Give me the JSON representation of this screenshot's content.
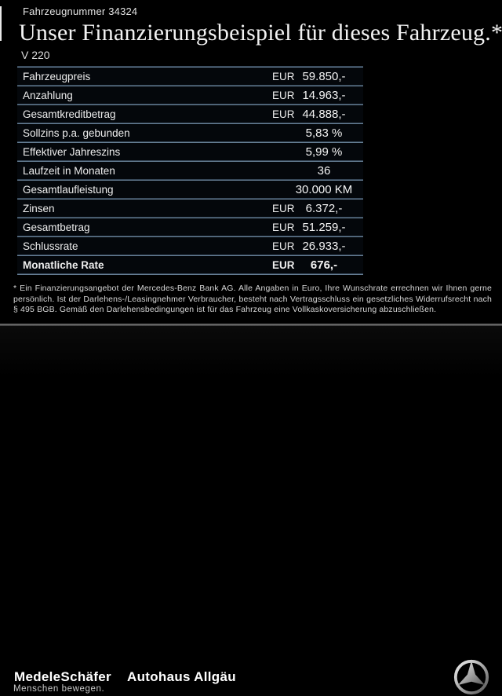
{
  "header": {
    "vehicle_number": "Fahrzeugnummer 34324",
    "title": "Unser Finanzierungsbeispiel für dieses Fahrzeug.*",
    "model": "V 220"
  },
  "table": {
    "rows": [
      {
        "label": "Fahrzeugpreis",
        "currency": "EUR",
        "value": "59.850,-",
        "bold": false
      },
      {
        "label": "Anzahlung",
        "currency": "EUR",
        "value": "14.963,-",
        "bold": false
      },
      {
        "label": "Gesamtkreditbetrag",
        "currency": "EUR",
        "value": "44.888,-",
        "bold": false
      },
      {
        "label": "Sollzins p.a. gebunden",
        "currency": "",
        "value": "5,83 %",
        "bold": false
      },
      {
        "label": "Effektiver Jahreszins",
        "currency": "",
        "value": "5,99 %",
        "bold": false
      },
      {
        "label": "Laufzeit in Monaten",
        "currency": "",
        "value": "36",
        "bold": false
      },
      {
        "label": "Gesamtlaufleistung",
        "currency": "",
        "value": "30.000 KM",
        "bold": false
      },
      {
        "label": "Zinsen",
        "currency": "EUR",
        "value": "6.372,-",
        "bold": false
      },
      {
        "label": "Gesamtbetrag",
        "currency": "EUR",
        "value": "51.259,-",
        "bold": false
      },
      {
        "label": "Schlussrate",
        "currency": "EUR",
        "value": "26.933,-",
        "bold": false
      },
      {
        "label": "Monatliche Rate",
        "currency": "EUR",
        "value": "676,-",
        "bold": true
      }
    ]
  },
  "footnote": "* Ein Finanzierungsangebot der Mercedes-Benz Bank AG. Alle Angaben in Euro, Ihre Wunschrate errechnen wir Ihnen gerne persönlich. Ist der Darlehens-/Leasingnehmer Verbraucher, besteht nach Vertragsschluss ein gesetzliches Widerrufsrecht nach § 495 BGB. Gemäß den Darlehensbedingungen ist für das Fahrzeug eine Vollkaskoversicherung abzuschließen.",
  "footer": {
    "dealer_logo": "MedeleSchäfer",
    "dealer_name": "Autohaus Allgäu",
    "slogan": "Menschen bewegen.",
    "brand_icon": "mercedes-star-icon"
  },
  "colors": {
    "background": "#000000",
    "table_divider_accent": "#7e9ab2",
    "footer_divider": "#6a6a6a",
    "text_primary": "#f0f0f0",
    "star_silver_light": "#efefef",
    "star_silver_dark": "#565656"
  }
}
